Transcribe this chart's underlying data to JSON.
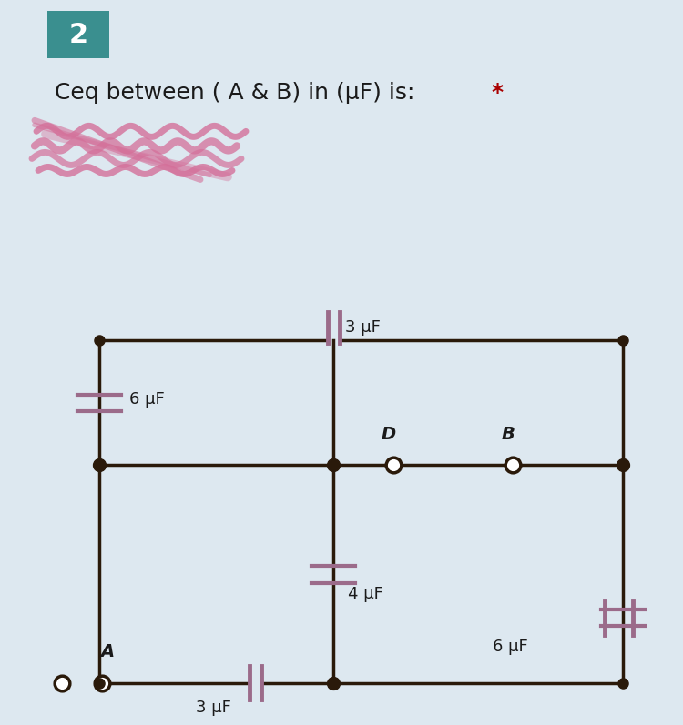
{
  "bg_color": "#dde8f0",
  "circuit_bg": "#ffffff",
  "title_box_color": "#3a8f8f",
  "title_number": "2",
  "question_text": "Ceq between ( A & B) in (μF) is:",
  "star_color": "#aa0000",
  "capacitor_color": "#9b6b8a",
  "wire_color": "#2a1a0a",
  "label_color": "#1a1a1a",
  "open_node_color": "#ffffff",
  "cap_labels": {
    "top": "3 μF",
    "left": "6 μF",
    "middle": "4 μF",
    "bottom_mid": "3 μF",
    "bottom_right": "6 μF"
  },
  "node_labels": {
    "D": "D",
    "B": "B",
    "A": "A"
  },
  "scribble_color": "#d4709a",
  "figsize": [
    7.5,
    7.97
  ],
  "dpi": 100
}
